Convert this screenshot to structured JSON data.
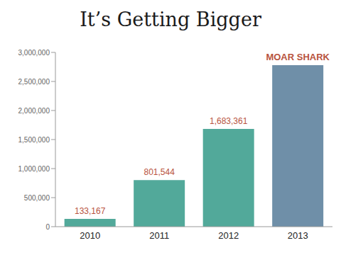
{
  "chart_data": {
    "type": "bar",
    "title": "It’s Getting Bigger",
    "categories": [
      "2010",
      "2011",
      "2012",
      "2013"
    ],
    "values": [
      133167,
      801544,
      1683361,
      2780000
    ],
    "value_labels": [
      "133,167",
      "801,544",
      "1,683,361",
      null
    ],
    "data_labels": true,
    "colors": [
      "#52a99a",
      "#52a99a",
      "#52a99a",
      "#6f8fa8"
    ],
    "annotations": [
      {
        "category": "2013",
        "text": "MOAR SHARK"
      }
    ],
    "ylim": [
      0,
      3000000
    ],
    "yticks": [
      0,
      {
        "value": 500000,
        "label": "500,000"
      },
      {
        "value": 1000000,
        "label": "1,000,000"
      },
      {
        "value": 1500000,
        "label": "1,500,000"
      },
      {
        "value": 2000000,
        "label": "2,000,000"
      },
      {
        "value": 2500000,
        "label": "2,500,000"
      },
      {
        "value": 3000000,
        "label": "3,000,000"
      }
    ],
    "grid": false
  }
}
